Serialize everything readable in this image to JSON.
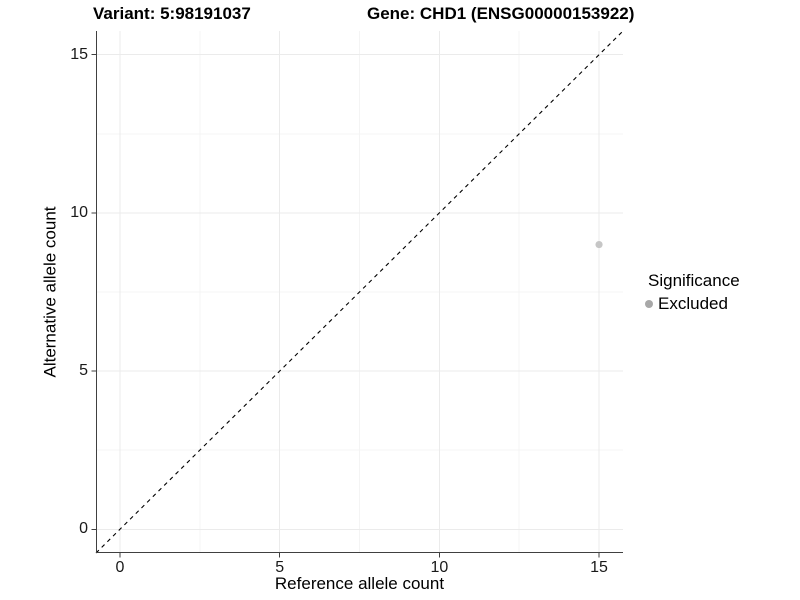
{
  "title": {
    "variant": "Variant: 5:98191037",
    "gene": "Gene: CHD1 (ENSG00000153922)"
  },
  "axes": {
    "x_label": "Reference allele count",
    "y_label": "Alternative allele count"
  },
  "legend": {
    "title": "Significance",
    "entries": [
      {
        "label": "Excluded",
        "color": "#a8a8a8"
      }
    ]
  },
  "chart_data": {
    "type": "scatter",
    "title": "Variant: 5:98191037    Gene: CHD1 (ENSG00000153922)",
    "xlabel": "Reference allele count",
    "ylabel": "Alternative allele count",
    "xlim": [
      -0.75,
      15.75
    ],
    "ylim": [
      -0.75,
      15.75
    ],
    "x_ticks": [
      0,
      5,
      10,
      15
    ],
    "y_ticks": [
      0,
      5,
      10,
      15
    ],
    "minor_ticks": [
      2.5,
      7.5,
      12.5
    ],
    "grid": "major+minor",
    "legend_position": "right",
    "series": [
      {
        "name": "Excluded",
        "type": "scatter",
        "color": "#c6c6c6",
        "points": [
          {
            "x": 15,
            "y": 9
          }
        ]
      }
    ],
    "reference_line": {
      "kind": "identity",
      "slope": 1,
      "intercept": 0,
      "linetype": "dashed",
      "color": "#000000"
    }
  },
  "colors": {
    "background": "#ffffff",
    "axis_line": "#404040",
    "tick_mark": "#404040",
    "tick_text": "#1a1a1a",
    "grid_major": "#ebebeb",
    "grid_minor": "#f4f4f4",
    "ref_line": "#000000",
    "point": "#c6c6c6",
    "legend_key": "#a8a8a8"
  }
}
